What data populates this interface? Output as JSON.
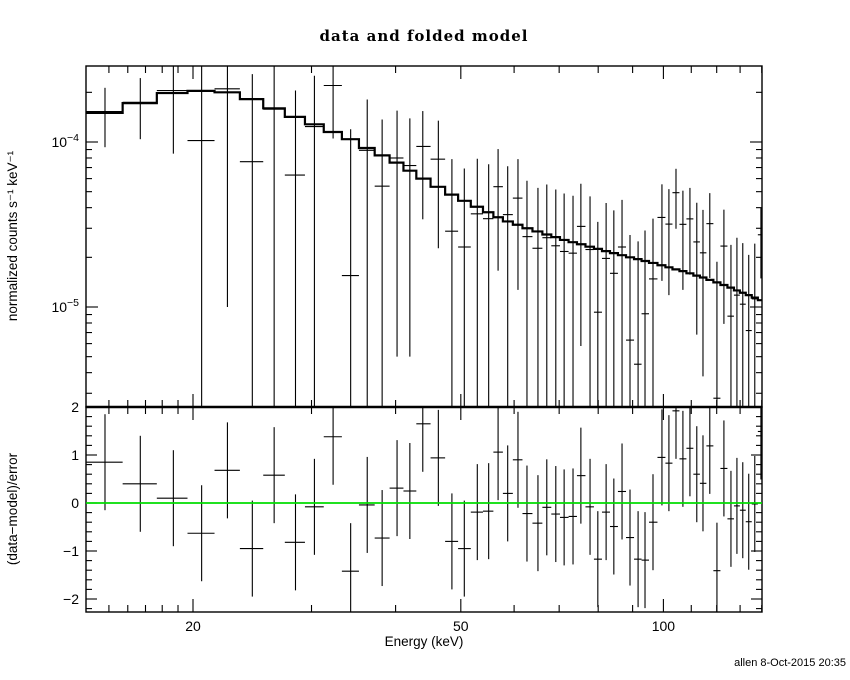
{
  "page": {
    "background": "#ffffff",
    "foreground": "#000000"
  },
  "footer": {
    "text": "allen  8-Oct-2015 20:35"
  },
  "chart_data": {
    "type": "scatter",
    "title": "data and folded model",
    "xlabel": "Energy (keV)",
    "x_axis": {
      "scale": "log",
      "lim": [
        13.87,
        140.2
      ],
      "ticks_major": [
        20,
        50,
        100
      ],
      "tick_labels": [
        "20",
        "50",
        "100"
      ],
      "ticks_minor": [
        15,
        16,
        17,
        18,
        19,
        30,
        40,
        60,
        70,
        80,
        90,
        110,
        120,
        130,
        140
      ]
    },
    "panels": [
      {
        "name": "spectrum",
        "ylabel": "normalized counts s⁻¹ keV⁻¹",
        "yscale": "log",
        "ylim": [
          2.48e-06,
          0.0002886
        ],
        "yticks_major": [
          {
            "value": 0.0001,
            "base": "10",
            "exp": "−4"
          },
          {
            "value": 1e-05,
            "base": "10",
            "exp": "−5"
          }
        ]
      },
      {
        "name": "residuals",
        "ylabel": "(data−model)/error",
        "yscale": "linear",
        "ylim": [
          -2.27,
          2.0
        ],
        "yticks_major": [
          2,
          1,
          0,
          -1,
          -2
        ],
        "ytick_labels": [
          "2",
          "1",
          "0",
          "−1",
          "−2"
        ],
        "ytick_minor_step": 0.2,
        "zero_line_color": "#00dd00"
      }
    ],
    "series": {
      "energy_kev": [
        14.8,
        16.7,
        18.7,
        20.6,
        22.5,
        24.5,
        26.4,
        28.4,
        30.3,
        32.3,
        34.3,
        36.3,
        38.2,
        40.2,
        42.0,
        43.9,
        46.3,
        48.5,
        50.6,
        52.9,
        55.0,
        56.8,
        58.7,
        60.8,
        62.7,
        65.1,
        67.1,
        69.2,
        71.2,
        73.4,
        75.4,
        77.8,
        79.9,
        82.2,
        84.4,
        86.8,
        89.2,
        91.7,
        93.9,
        96.5,
        99.5,
        101.9,
        104.4,
        106.9,
        109.5,
        112.1,
        114.5,
        117.2,
        120.1,
        123.0,
        126.0,
        128.6,
        131.2,
        133.9,
        136.7,
        139.6
      ],
      "unit_scale": 1e-05,
      "model": {
        "name": "folded model",
        "values": [
          15.0,
          17.2,
          19.8,
          20.4,
          20.0,
          18.2,
          16.0,
          14.2,
          12.8,
          11.5,
          10.4,
          9.2,
          8.3,
          7.5,
          6.7,
          6.0,
          5.35,
          4.8,
          4.4,
          4.05,
          3.75,
          3.5,
          3.3,
          3.15,
          3.0,
          2.87,
          2.75,
          2.65,
          2.55,
          2.47,
          2.4,
          2.32,
          2.25,
          2.18,
          2.12,
          2.06,
          2.0,
          1.95,
          1.9,
          1.85,
          1.79,
          1.74,
          1.69,
          1.65,
          1.6,
          1.55,
          1.51,
          1.46,
          1.41,
          1.36,
          1.31,
          1.26,
          1.22,
          1.18,
          1.14,
          1.1
        ]
      },
      "data": {
        "name": "data",
        "values": [
          15.3,
          17.4,
          20.5,
          10.2,
          21.0,
          7.6,
          15.8,
          6.3,
          12.4,
          22.0,
          1.55,
          8.9,
          5.4,
          8.0,
          7.2,
          9.4,
          7.87,
          2.88,
          2.31,
          3.67,
          3.43,
          5.36,
          3.63,
          4.57,
          2.67,
          2.27,
          2.63,
          2.35,
          2.17,
          2.12,
          3.08,
          2.23,
          0.93,
          1.97,
          1.6,
          2.31,
          0.63,
          0.45,
          0.91,
          1.48,
          3.49,
          3.18,
          4.93,
          3.17,
          3.42,
          2.48,
          2.13,
          3.2,
          0.28,
          2.34,
          0.88,
          1.18,
          1.04,
          0.72,
          1.12,
          2.74
        ],
        "sigma": [
          6.0,
          7.0,
          12.0,
          20.4,
          20.0,
          18.2,
          16.0,
          14.2,
          12.8,
          11.5,
          10.4,
          9.2,
          8.3,
          7.5,
          6.7,
          6.0,
          5.6,
          5.0,
          4.6,
          4.25,
          3.9,
          3.7,
          3.5,
          3.3,
          3.15,
          3.0,
          2.9,
          2.8,
          2.7,
          2.6,
          2.5,
          2.45,
          2.35,
          2.3,
          2.25,
          2.15,
          2.1,
          2.05,
          2.0,
          1.95,
          2.05,
          2.0,
          1.95,
          1.9,
          1.85,
          1.8,
          1.75,
          1.7,
          1.6,
          1.55,
          1.5,
          1.45,
          1.4,
          1.35,
          1.3,
          1.25
        ]
      },
      "residuals": {
        "name": "(data-model)/error",
        "values": [
          0.85,
          0.4,
          0.1,
          -0.63,
          0.68,
          -0.95,
          0.58,
          -0.82,
          -0.08,
          1.38,
          -1.42,
          -0.04,
          -0.73,
          0.31,
          0.25,
          1.65,
          0.94,
          -0.8,
          -0.95,
          -0.19,
          -0.17,
          1.06,
          0.2,
          0.9,
          -0.22,
          -0.42,
          -0.09,
          -0.23,
          -0.3,
          -0.28,
          0.57,
          -0.08,
          -1.17,
          -0.19,
          -0.49,
          0.24,
          -0.72,
          -1.17,
          -1.19,
          -0.4,
          0.95,
          0.83,
          1.92,
          0.92,
          1.14,
          0.6,
          0.41,
          1.19,
          -1.41,
          0.72,
          -0.33,
          -0.06,
          -0.15,
          -0.39,
          -0.02,
          1.49
        ],
        "sigma": 1
      }
    }
  }
}
